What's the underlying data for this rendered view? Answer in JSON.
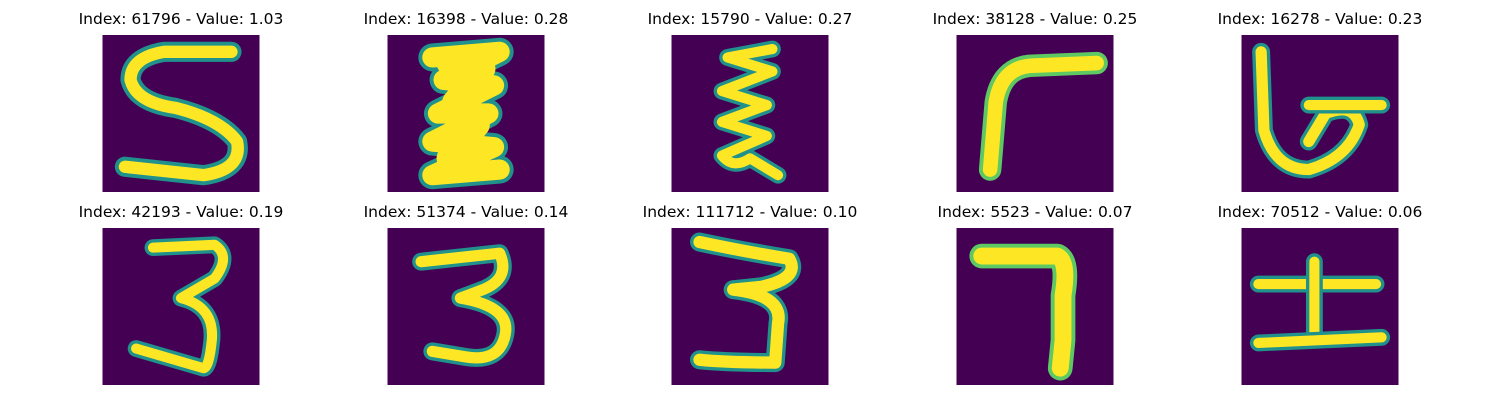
{
  "colors": {
    "background_purple": "#440154",
    "stroke_yellow": "#fde725",
    "edge_teal": "#21918c",
    "edge_green": "#5ec962"
  },
  "panels": [
    {
      "title": "Index: 61796 - Value: 1.03",
      "glyph": "5"
    },
    {
      "title": "Index: 16398 - Value: 0.28",
      "glyph": "scribble"
    },
    {
      "title": "Index: 15790 - Value: 0.27",
      "glyph": "zigzag"
    },
    {
      "title": "Index: 38128 - Value: 0.25",
      "glyph": "hook"
    },
    {
      "title": "Index: 16278 - Value: 0.23",
      "glyph": "loop"
    },
    {
      "title": "Index: 42193 - Value: 0.19",
      "glyph": "3"
    },
    {
      "title": "Index: 51374 - Value: 0.14",
      "glyph": "3"
    },
    {
      "title": "Index: 111712 - Value: 0.10",
      "glyph": "3"
    },
    {
      "title": "Index: 5523 - Value: 0.07",
      "glyph": "7"
    },
    {
      "title": "Index: 70512 - Value: 0.06",
      "glyph": "I-bar"
    }
  ]
}
